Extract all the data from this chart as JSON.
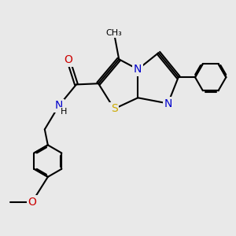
{
  "background_color": "#e9e9e9",
  "atom_colors": {
    "C": "#000000",
    "N": "#0000cc",
    "O": "#cc0000",
    "S": "#ccaa00",
    "H": "#000000"
  },
  "bond_color": "#000000",
  "bond_lw": 1.5,
  "font_size": 9,
  "figsize": [
    3.0,
    3.0
  ],
  "dpi": 100
}
